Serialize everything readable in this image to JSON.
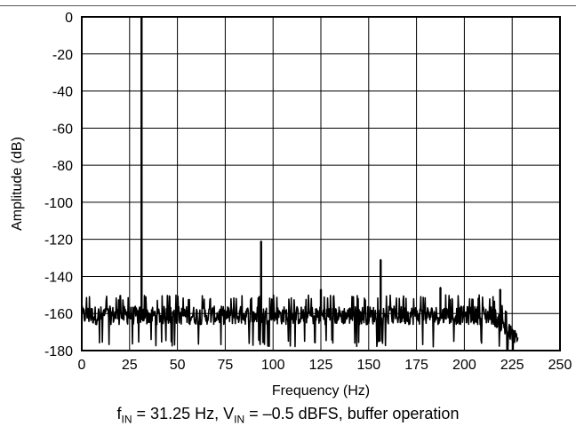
{
  "chart_data": {
    "type": "line",
    "title": "",
    "xlabel": "Frequency (Hz)",
    "ylabel": "Amplitude (dB)",
    "xlim": [
      0,
      250
    ],
    "ylim": [
      -180,
      0
    ],
    "x_ticks": [
      "0",
      "25",
      "50",
      "75",
      "100",
      "125",
      "150",
      "175",
      "200",
      "225",
      "250"
    ],
    "y_ticks": [
      "0",
      "-20",
      "-40",
      "-60",
      "-80",
      "-100",
      "-120",
      "-140",
      "-160",
      "-180"
    ],
    "grid": true,
    "line_color": "#000000",
    "noise_floor": {
      "x_range": [
        0,
        228
      ],
      "typical_db": -160,
      "upper_db": -150,
      "lower_db": -178
    },
    "peaks": [
      {
        "x": 31.25,
        "y": -0.5
      },
      {
        "x": 93.75,
        "y": -121
      },
      {
        "x": 125,
        "y": -147
      },
      {
        "x": 156.25,
        "y": -131
      },
      {
        "x": 187.5,
        "y": -146
      },
      {
        "x": 218.75,
        "y": -147
      }
    ]
  },
  "caption": {
    "f_main": "f",
    "f_sub": "IN",
    "f_value": " = 31.25 Hz, V",
    "v_sub": "IN",
    "rest": " = –0.5 dBFS, buffer operation"
  }
}
